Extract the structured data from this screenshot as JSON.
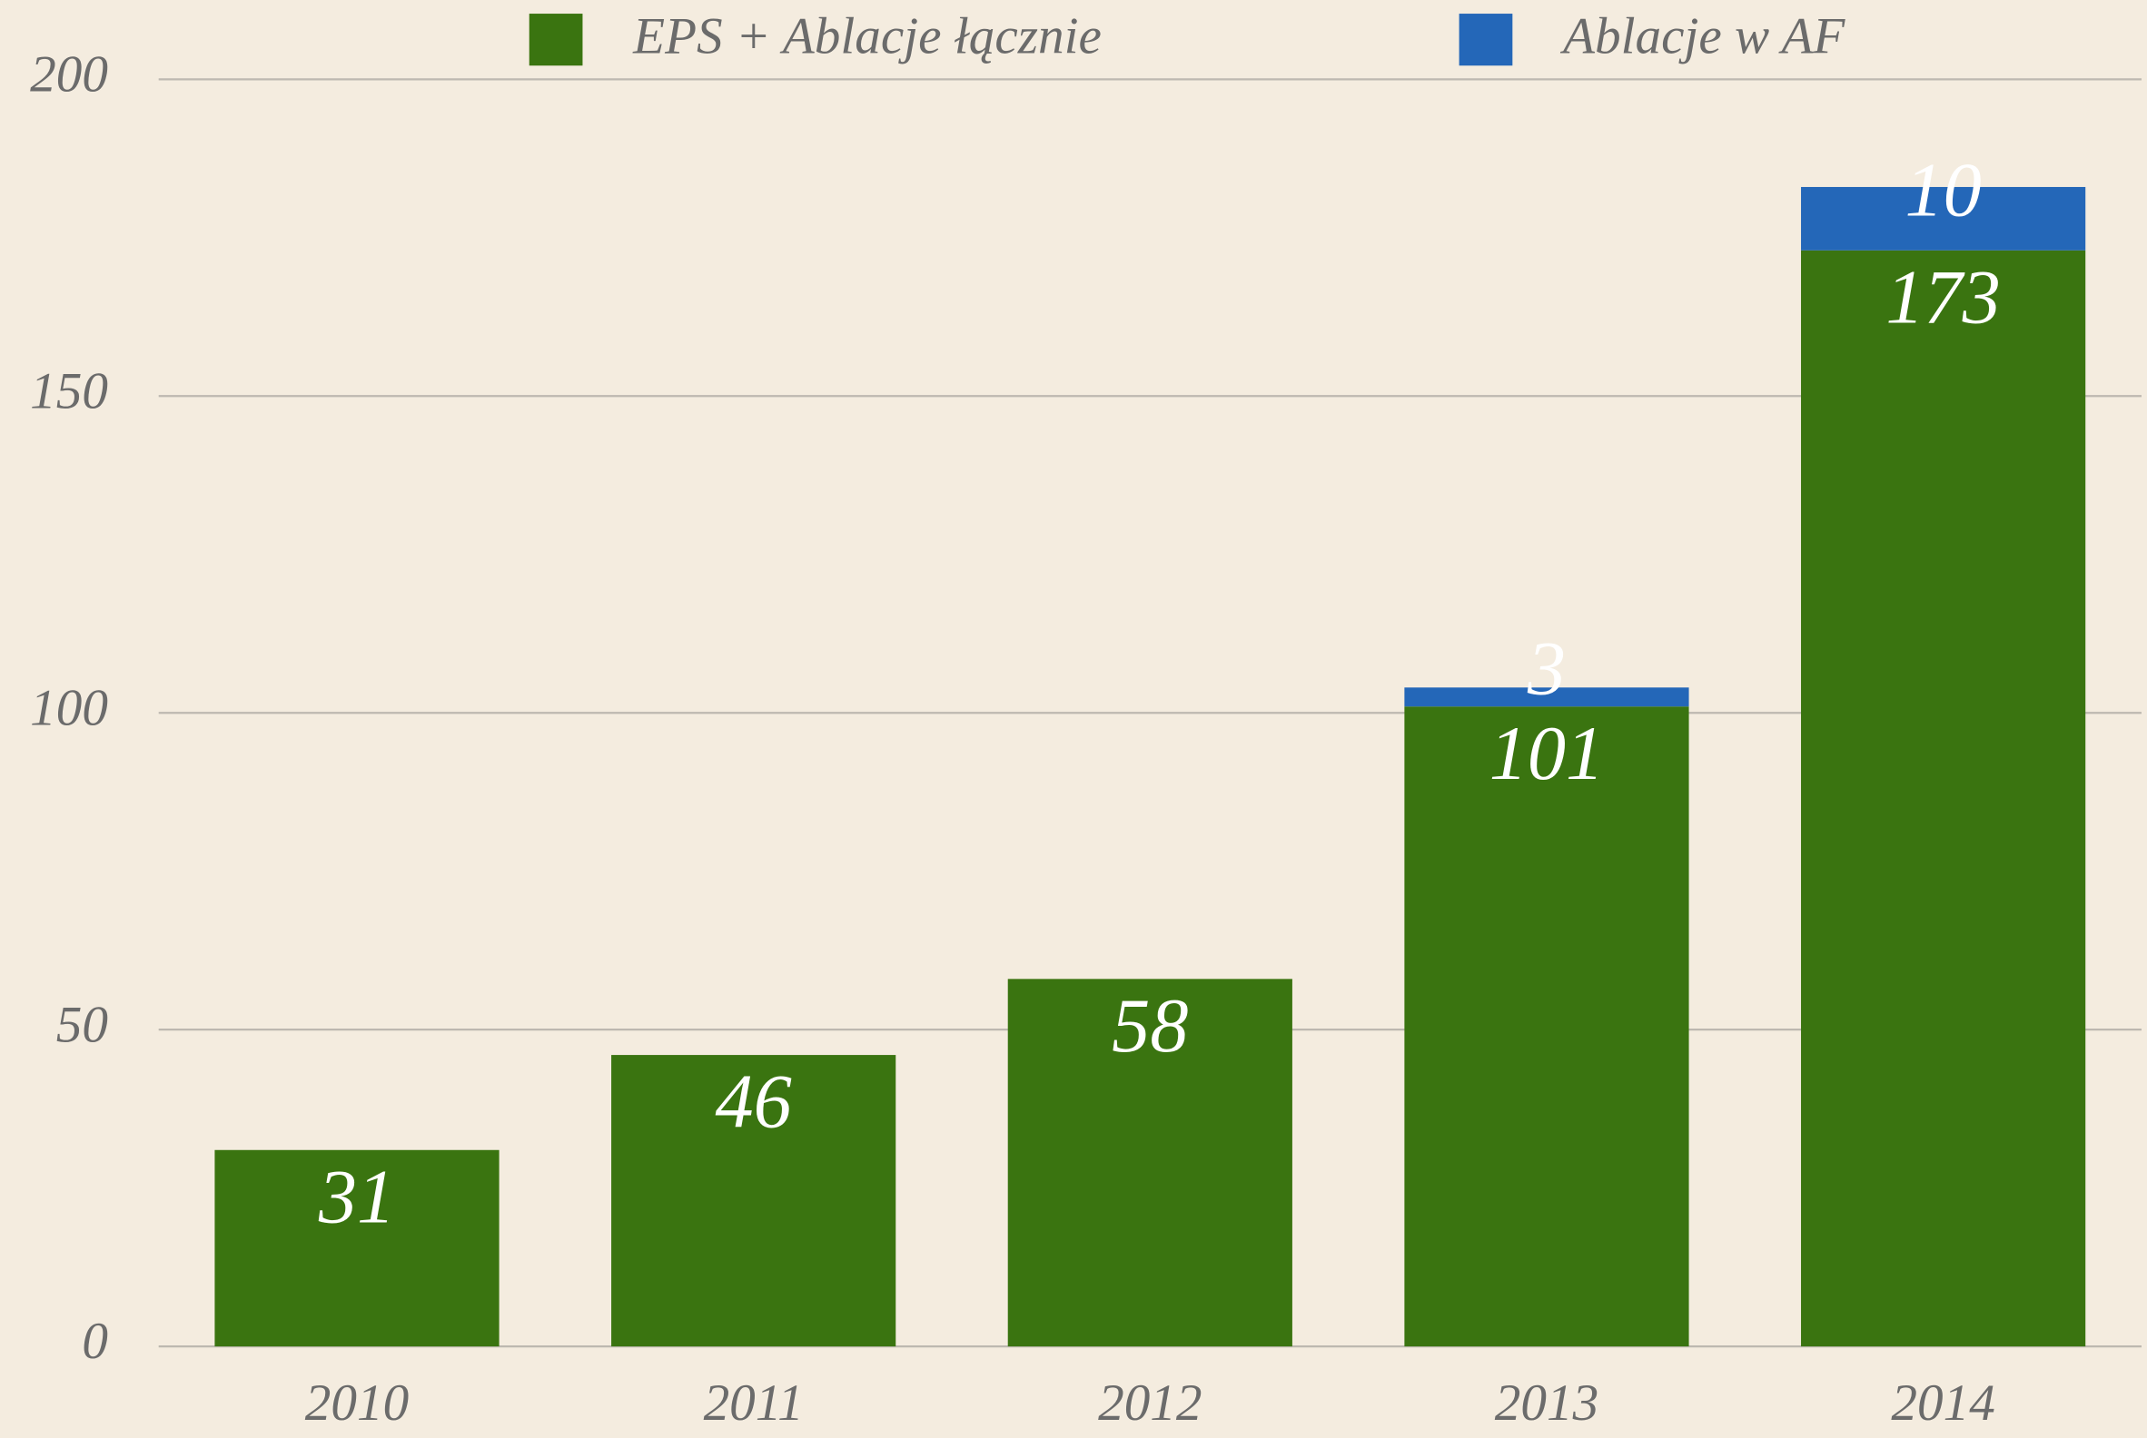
{
  "chart_data": {
    "type": "bar",
    "stacked": true,
    "categories": [
      "2010",
      "2011",
      "2012",
      "2013",
      "2014"
    ],
    "series": [
      {
        "name": "EPS + Ablacje łącznie",
        "color": "#3a7410",
        "values": [
          31,
          46,
          58,
          101,
          173
        ]
      },
      {
        "name": "Ablacje w AF",
        "color": "#2467b8",
        "values": [
          null,
          null,
          null,
          3,
          10
        ]
      }
    ],
    "ylim": [
      0,
      200
    ],
    "yticks": [
      0,
      50,
      100,
      150,
      200
    ],
    "grid": true,
    "legend": "top"
  }
}
